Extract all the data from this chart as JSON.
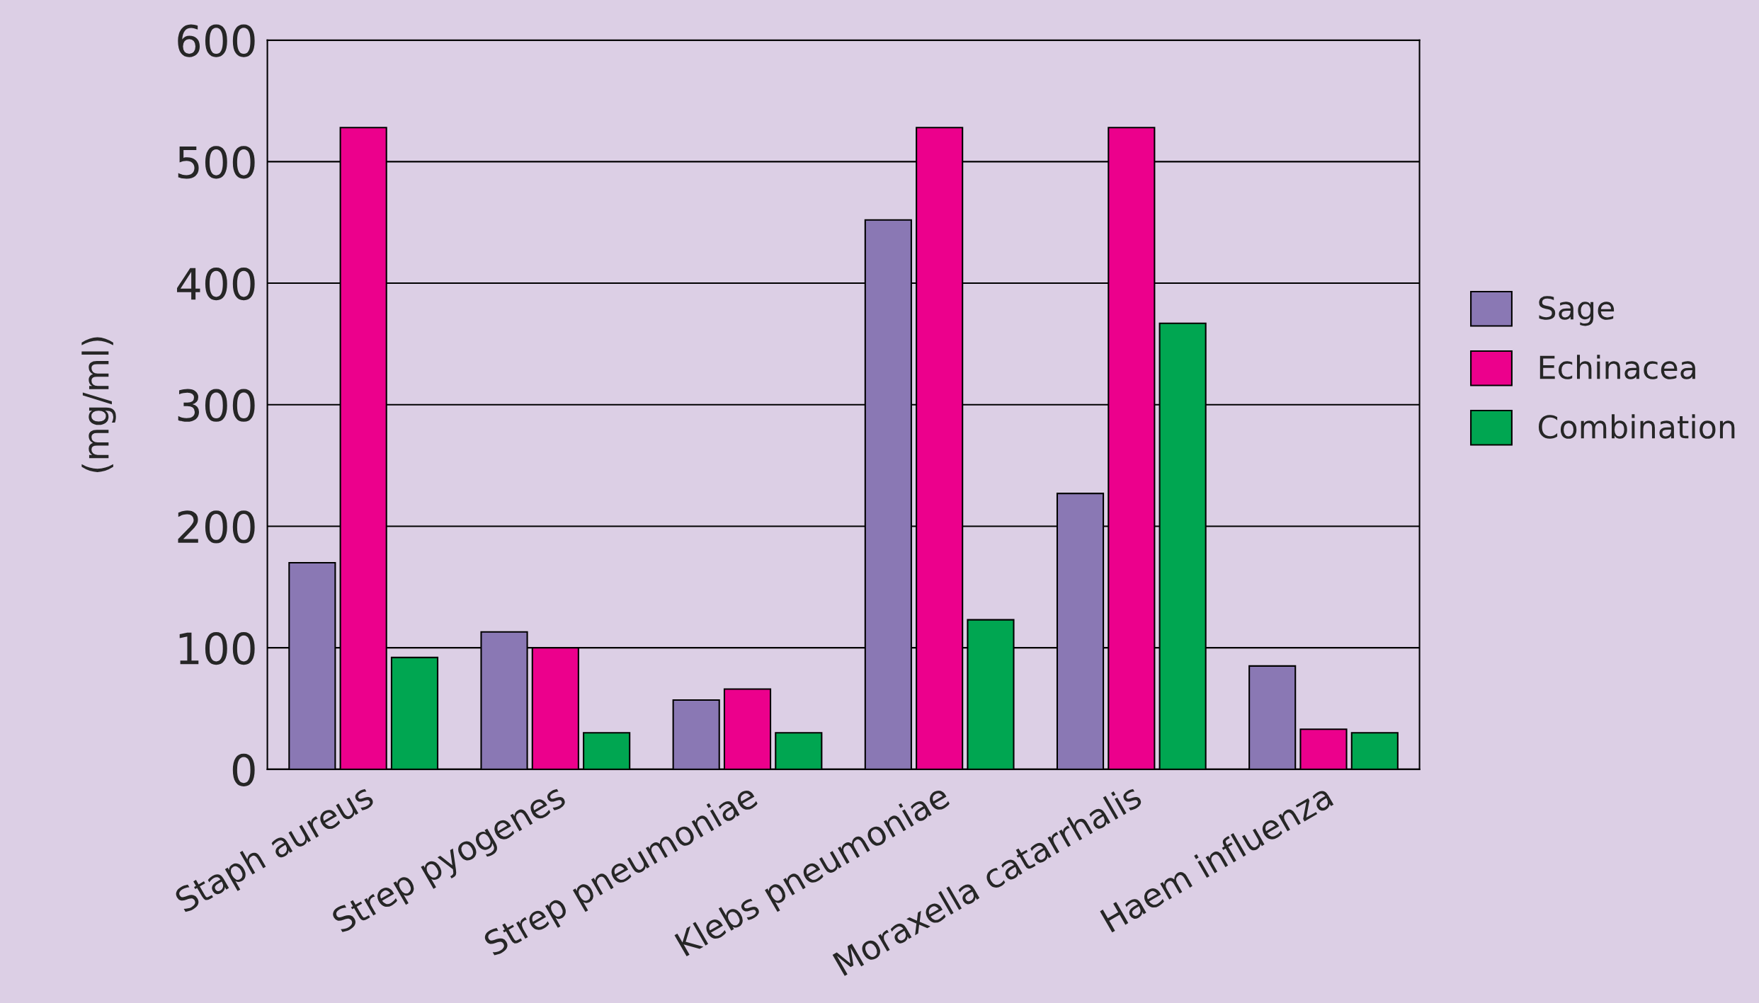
{
  "chart_data": {
    "type": "bar",
    "ylabel": "(mg/ml)",
    "categories": [
      "Staph aureus",
      "Strep pyogenes",
      "Strep pneumoniae",
      "Klebs pneumoniae",
      "Moraxella catarrhalis",
      "Haem influenza"
    ],
    "series": [
      {
        "name": "Sage",
        "color": "#8a78b4",
        "values": [
          170,
          113,
          57,
          452,
          227,
          85
        ]
      },
      {
        "name": "Echinacea",
        "color": "#ec008c",
        "values": [
          528,
          100,
          66,
          528,
          528,
          33
        ]
      },
      {
        "name": "Combination",
        "color": "#00a651",
        "values": [
          92,
          30,
          30,
          123,
          367,
          30
        ]
      }
    ],
    "ylim": [
      0,
      600
    ],
    "yticks": [
      0,
      100,
      200,
      300,
      400,
      500,
      600
    ],
    "grid": "y",
    "legend": "right"
  }
}
